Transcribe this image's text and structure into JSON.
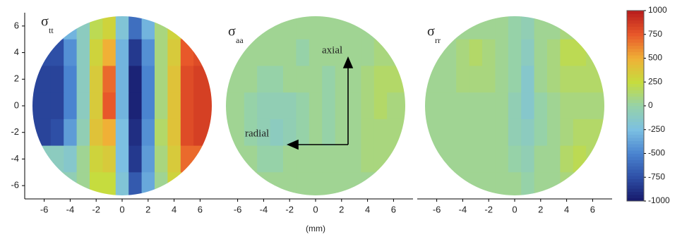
{
  "chart_data": [
    {
      "type": "contour",
      "title": "σ",
      "title_sub": "tt",
      "x": [
        -6,
        -5,
        -4,
        -3,
        -2,
        -1,
        0,
        1,
        2,
        3,
        4,
        5,
        6
      ],
      "y": [
        6,
        4,
        2,
        0,
        -2,
        -4,
        -6
      ],
      "z": [
        [
          -500,
          -500,
          -300,
          -100,
          200,
          300,
          -200,
          -600,
          -300,
          100,
          300,
          600,
          600
        ],
        [
          -750,
          -750,
          -450,
          -100,
          300,
          500,
          -300,
          -850,
          -450,
          100,
          350,
          750,
          800
        ],
        [
          -800,
          -800,
          -500,
          -100,
          350,
          700,
          -300,
          -950,
          -500,
          100,
          400,
          800,
          850
        ],
        [
          -800,
          -800,
          -500,
          -100,
          350,
          750,
          -300,
          -950,
          -500,
          100,
          400,
          800,
          850
        ],
        [
          -800,
          -750,
          -400,
          -50,
          400,
          500,
          -250,
          -900,
          -450,
          150,
          400,
          800,
          850
        ],
        [
          -100,
          -100,
          -150,
          50,
          300,
          350,
          -250,
          -850,
          -400,
          100,
          350,
          700,
          700
        ],
        [
          0,
          0,
          -50,
          50,
          250,
          250,
          -200,
          -700,
          -350,
          50,
          300,
          500,
          500
        ]
      ],
      "xlim": [
        -7.5,
        7.5
      ],
      "ylim": [
        -7,
        7
      ],
      "xticks": [
        -6,
        -4,
        -2,
        0,
        2,
        4,
        6
      ],
      "yticks": [
        -6,
        -4,
        -2,
        0,
        2,
        4,
        6
      ]
    },
    {
      "type": "contour",
      "title": "σ",
      "title_sub": "aa",
      "x": [
        -6,
        -5,
        -4,
        -3,
        -2,
        -1,
        0,
        1,
        2,
        3,
        4,
        5,
        6
      ],
      "y": [
        6,
        4,
        2,
        0,
        -2,
        -4,
        -6
      ],
      "z": [
        [
          50,
          50,
          50,
          50,
          50,
          50,
          50,
          50,
          50,
          50,
          50,
          50,
          50
        ],
        [
          50,
          50,
          50,
          50,
          50,
          0,
          50,
          50,
          50,
          50,
          50,
          100,
          100
        ],
        [
          50,
          50,
          0,
          0,
          50,
          50,
          50,
          0,
          50,
          50,
          100,
          150,
          150
        ],
        [
          50,
          0,
          -50,
          -50,
          -50,
          0,
          50,
          0,
          50,
          50,
          100,
          150,
          100
        ],
        [
          50,
          0,
          -50,
          -100,
          -50,
          0,
          50,
          0,
          50,
          50,
          100,
          100,
          100
        ],
        [
          50,
          50,
          0,
          0,
          50,
          50,
          50,
          50,
          50,
          50,
          100,
          100,
          100
        ],
        [
          50,
          50,
          50,
          50,
          50,
          50,
          50,
          50,
          50,
          50,
          50,
          50,
          50
        ]
      ],
      "xlim": [
        -7.5,
        7.5
      ],
      "ylim": [
        -7,
        7
      ],
      "xticks": [
        -6,
        -4,
        -2,
        0,
        2,
        4,
        6
      ],
      "xlabel": "(mm)",
      "annotations": [
        "axial",
        "radial"
      ]
    },
    {
      "type": "contour",
      "title": "σ",
      "title_sub": "rr",
      "x": [
        -6,
        -5,
        -4,
        -3,
        -2,
        -1,
        0,
        1,
        2,
        3,
        4,
        5,
        6
      ],
      "y": [
        6,
        4,
        2,
        0,
        -2,
        -4,
        -6
      ],
      "z": [
        [
          50,
          50,
          50,
          50,
          50,
          50,
          0,
          -50,
          50,
          50,
          100,
          100,
          100
        ],
        [
          50,
          50,
          100,
          150,
          100,
          50,
          0,
          -100,
          50,
          100,
          200,
          200,
          150
        ],
        [
          50,
          50,
          100,
          100,
          100,
          50,
          0,
          -150,
          50,
          100,
          150,
          150,
          150
        ],
        [
          50,
          50,
          50,
          50,
          50,
          50,
          -50,
          -150,
          0,
          50,
          100,
          100,
          100
        ],
        [
          50,
          50,
          50,
          50,
          50,
          50,
          -50,
          -100,
          0,
          50,
          100,
          150,
          150
        ],
        [
          50,
          50,
          50,
          50,
          50,
          50,
          0,
          -50,
          50,
          50,
          150,
          200,
          150
        ],
        [
          50,
          50,
          50,
          50,
          50,
          50,
          50,
          0,
          50,
          50,
          100,
          100,
          100
        ]
      ],
      "xlim": [
        -7.5,
        7.5
      ],
      "ylim": [
        -7,
        7
      ],
      "xticks": [
        -6,
        -4,
        -2,
        0,
        2,
        4,
        6
      ]
    }
  ],
  "colorbar": {
    "zlim": [
      -1000,
      1000
    ],
    "ticks": [
      1000,
      750,
      500,
      250,
      0,
      -250,
      -500,
      -750,
      -1000
    ],
    "colors": [
      "#b81c1c",
      "#e8582a",
      "#f0b036",
      "#c6dc3e",
      "#96d2a8",
      "#7cc0e2",
      "#4a84d0",
      "#2e4fa6",
      "#16186a"
    ]
  }
}
